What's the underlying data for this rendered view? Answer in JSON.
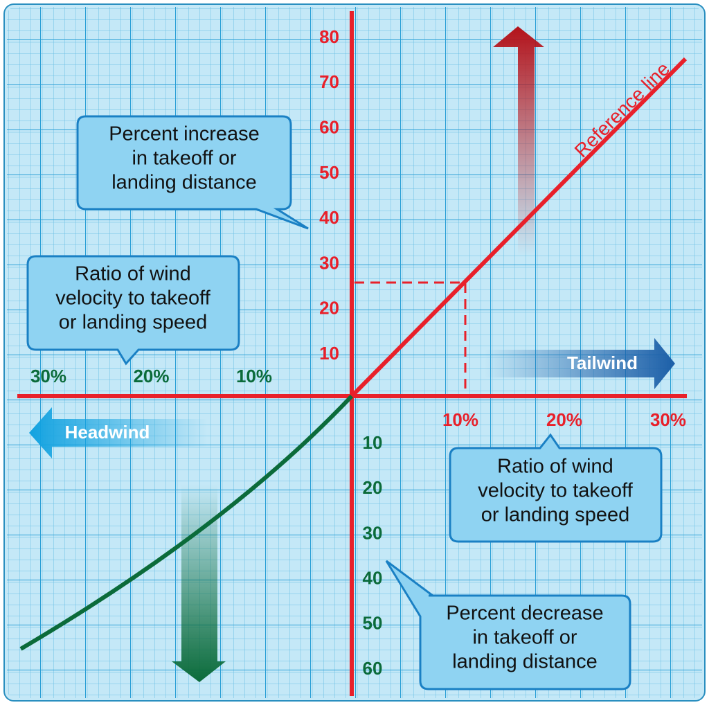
{
  "axes": {
    "up_ticks": [
      80,
      70,
      60,
      50,
      40,
      30,
      20,
      10
    ],
    "right_ticks": [
      "10%",
      "20%",
      "30%"
    ],
    "left_ticks": [
      "30%",
      "20%",
      "10%"
    ],
    "down_ticks": [
      10,
      20,
      30,
      40,
      50,
      60
    ]
  },
  "reference_line_label": "Reference line",
  "tailwind": "Tailwind",
  "headwind": "Headwind",
  "callouts": [
    {
      "lines": [
        "Percent increase",
        "in takeoff or",
        "landing distance"
      ]
    },
    {
      "lines": [
        "Ratio of wind",
        "velocity to takeoff",
        "or landing speed"
      ]
    },
    {
      "lines": [
        "Ratio of wind",
        "velocity to takeoff",
        "or landing speed"
      ]
    },
    {
      "lines": [
        "Percent decrease",
        "in takeoff or",
        "landing distance"
      ]
    }
  ]
}
